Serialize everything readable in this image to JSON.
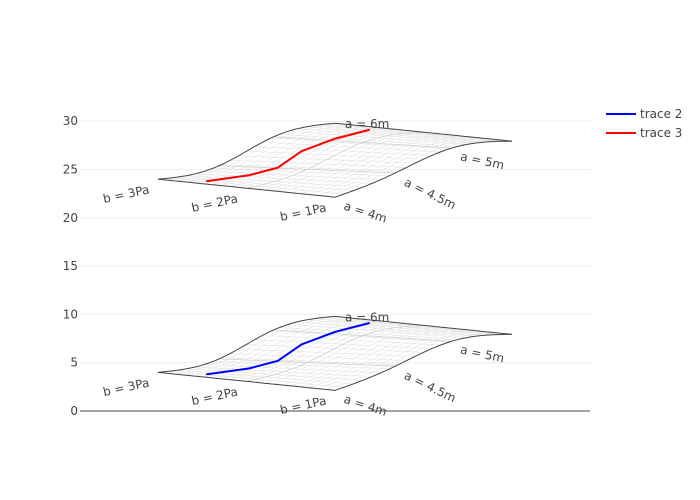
{
  "chart_data": {
    "type": "carpet",
    "yaxis": {
      "ticks": [
        "0",
        "5",
        "10",
        "15",
        "20",
        "25",
        "30"
      ],
      "range": [
        0,
        32.2
      ],
      "grid": true
    },
    "carpets": [
      {
        "a_labels": [
          "a = 4m",
          "a = 4.5m",
          "a = 5m",
          "a = 6m"
        ],
        "b_labels": [
          "b = 1Pa",
          "b = 2Pa",
          "b = 3Pa"
        ]
      },
      {
        "a_labels": [
          "a = 4m",
          "a = 4.5m",
          "a = 5m",
          "a = 6m"
        ],
        "b_labels": [
          "b = 1Pa",
          "b = 2Pa",
          "b = 3Pa"
        ]
      }
    ],
    "series": [
      {
        "name": "trace 2",
        "color": "#0000ff",
        "points": [
          [
            0.0,
            3.8
          ],
          [
            0.62,
            4.4
          ],
          [
            1.05,
            5.2
          ],
          [
            1.4,
            6.9
          ],
          [
            1.9,
            8.2
          ],
          [
            2.4,
            9.1
          ]
        ]
      },
      {
        "name": "trace 3",
        "color": "#ff0000",
        "points": [
          [
            0.0,
            23.8
          ],
          [
            0.62,
            24.4
          ],
          [
            1.05,
            25.2
          ],
          [
            1.4,
            26.9
          ],
          [
            1.9,
            28.2
          ],
          [
            2.4,
            29.1
          ]
        ]
      }
    ],
    "legend": {
      "position": "top-right",
      "entries": [
        "trace 2",
        "trace 3"
      ]
    }
  }
}
